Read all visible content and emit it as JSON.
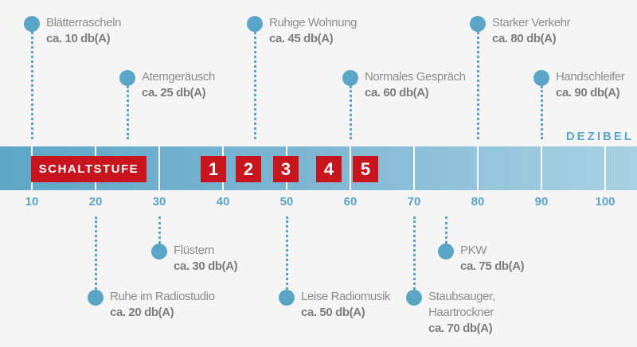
{
  "colors": {
    "accent": "#5aa5c6",
    "stage_red": "#c8141c",
    "text": "#8c8c8c"
  },
  "axis": {
    "unit_label": "DEZIBEL",
    "ticks": [
      10,
      20,
      30,
      40,
      50,
      60,
      70,
      80,
      90,
      100
    ]
  },
  "stages": {
    "label": "SCHALTSTUFE",
    "numbers": [
      "1",
      "2",
      "3",
      "4",
      "5"
    ]
  },
  "top_items": [
    {
      "value": 10,
      "lines": [
        "Blätterrascheln"
      ],
      "level": "ca. 10 db(A)"
    },
    {
      "value": 25,
      "lines": [
        "Atemgeräusch"
      ],
      "level": "ca. 25 db(A)"
    },
    {
      "value": 45,
      "lines": [
        "Ruhige Wohnung"
      ],
      "level": "ca. 45 db(A)"
    },
    {
      "value": 60,
      "lines": [
        "Normales Gespräch"
      ],
      "level": "ca. 60 db(A)"
    },
    {
      "value": 80,
      "lines": [
        "Starker Verkehr"
      ],
      "level": "ca. 80 db(A)"
    },
    {
      "value": 90,
      "lines": [
        "Handschleifer"
      ],
      "level": "ca. 90 db(A)"
    }
  ],
  "bottom_items": [
    {
      "value": 20,
      "lines": [
        "Ruhe im Radiostudio"
      ],
      "level": "ca. 20 db(A)"
    },
    {
      "value": 30,
      "lines": [
        "Flüstern"
      ],
      "level": "ca. 30 db(A)"
    },
    {
      "value": 50,
      "lines": [
        "Leise Radiomusik"
      ],
      "level": "ca. 50 db(A)"
    },
    {
      "value": 70,
      "lines": [
        "Staubsauger,",
        "Haartrockner"
      ],
      "level": "ca. 70 db(A)"
    },
    {
      "value": 75,
      "lines": [
        "PKW"
      ],
      "level": "ca. 75 db(A)"
    }
  ]
}
